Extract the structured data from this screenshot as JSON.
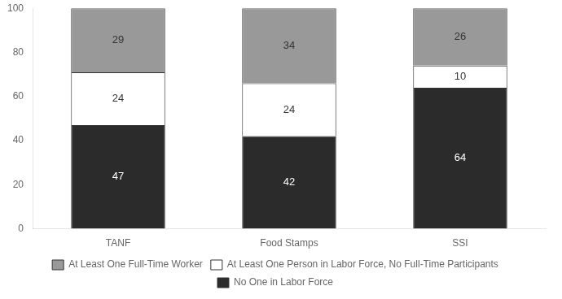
{
  "chart_data": {
    "type": "bar",
    "stacked": true,
    "categories": [
      "TANF",
      "Food Stamps",
      "SSI"
    ],
    "series": [
      {
        "name": "No One in Labor Force",
        "color": "#2b2b2b",
        "values": [
          47,
          42,
          64
        ]
      },
      {
        "name": "At Least One Person in Labor Force, No Full-Time Participants",
        "color": "#ffffff",
        "values": [
          24,
          24,
          10
        ]
      },
      {
        "name": "At Least One Full-Time Worker",
        "color": "#999999",
        "values": [
          29,
          34,
          26
        ]
      }
    ],
    "ylim": [
      0,
      100
    ],
    "yticks": [
      0,
      20,
      40,
      60,
      80,
      100
    ],
    "grid": false,
    "legend": "bottom",
    "data_labels": true
  }
}
